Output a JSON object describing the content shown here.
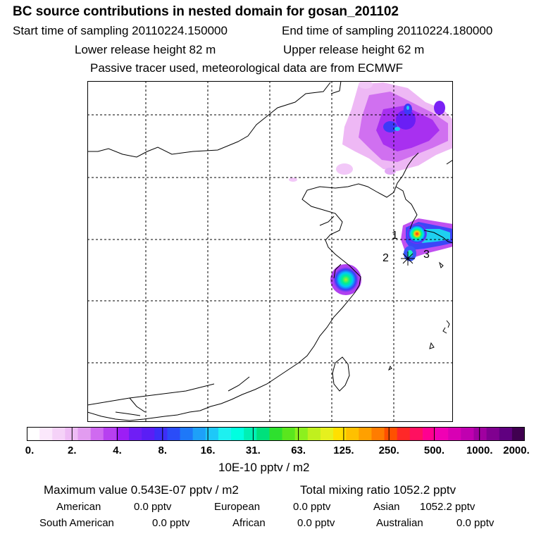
{
  "header": {
    "title": "BC  source contributions in nested domain for gosan_201102",
    "start_label": "Start time of sampling 20110224.150000",
    "end_label": "End time of sampling 20110224.180000",
    "lower_label": "Lower release height   82 m",
    "upper_label": "Upper release height   62 m",
    "tracer_label": "Passive tracer used, meteorological data are from ECMWF"
  },
  "map": {
    "point_labels": [
      "1",
      "2",
      "3"
    ]
  },
  "colorbar": {
    "tick_labels": [
      "0.",
      "2.",
      "4.",
      "8.",
      "16.",
      "31.",
      "63.",
      "125.",
      "250.",
      "500.",
      "1000.",
      "2000."
    ],
    "unit": "10E-10 pptv / m2",
    "colors": [
      "#ffffff",
      "#fbe8fc",
      "#f5d2f8",
      "#eebbf5",
      "#e29cf0",
      "#cf6af0",
      "#b740f0",
      "#9c1ef5",
      "#6f1ef5",
      "#5a1ef5",
      "#3d2ef8",
      "#2a4cf8",
      "#1e78f8",
      "#1ea0f8",
      "#1ec8f8",
      "#1ef0f0",
      "#00ffe0",
      "#00f0b4",
      "#00e07c",
      "#2ee02e",
      "#5ae61e",
      "#8cf01e",
      "#c0f01e",
      "#e6f01e",
      "#ffe000",
      "#ffc000",
      "#ffa000",
      "#ff7c00",
      "#ff5000",
      "#ff2828",
      "#ff1060",
      "#ff0090",
      "#f000b4",
      "#d800b4",
      "#c000b0",
      "#a000a0",
      "#800090",
      "#600080",
      "#400050"
    ]
  },
  "stats": {
    "max_label": "Maximum value  0.543E-07 pptv / m2",
    "total_label": "Total mixing ratio     1052.2 pptv",
    "american_label": "American",
    "american_value": "0.0 pptv",
    "european_label": "European",
    "european_value": "0.0 pptv",
    "asian_label": "Asian",
    "asian_value": "1052.2 pptv",
    "south_american_label": "South American",
    "south_american_value": "0.0 pptv",
    "african_label": "African",
    "african_value": "0.0 pptv",
    "australian_label": "Australian",
    "australian_value": "0.0 pptv"
  }
}
